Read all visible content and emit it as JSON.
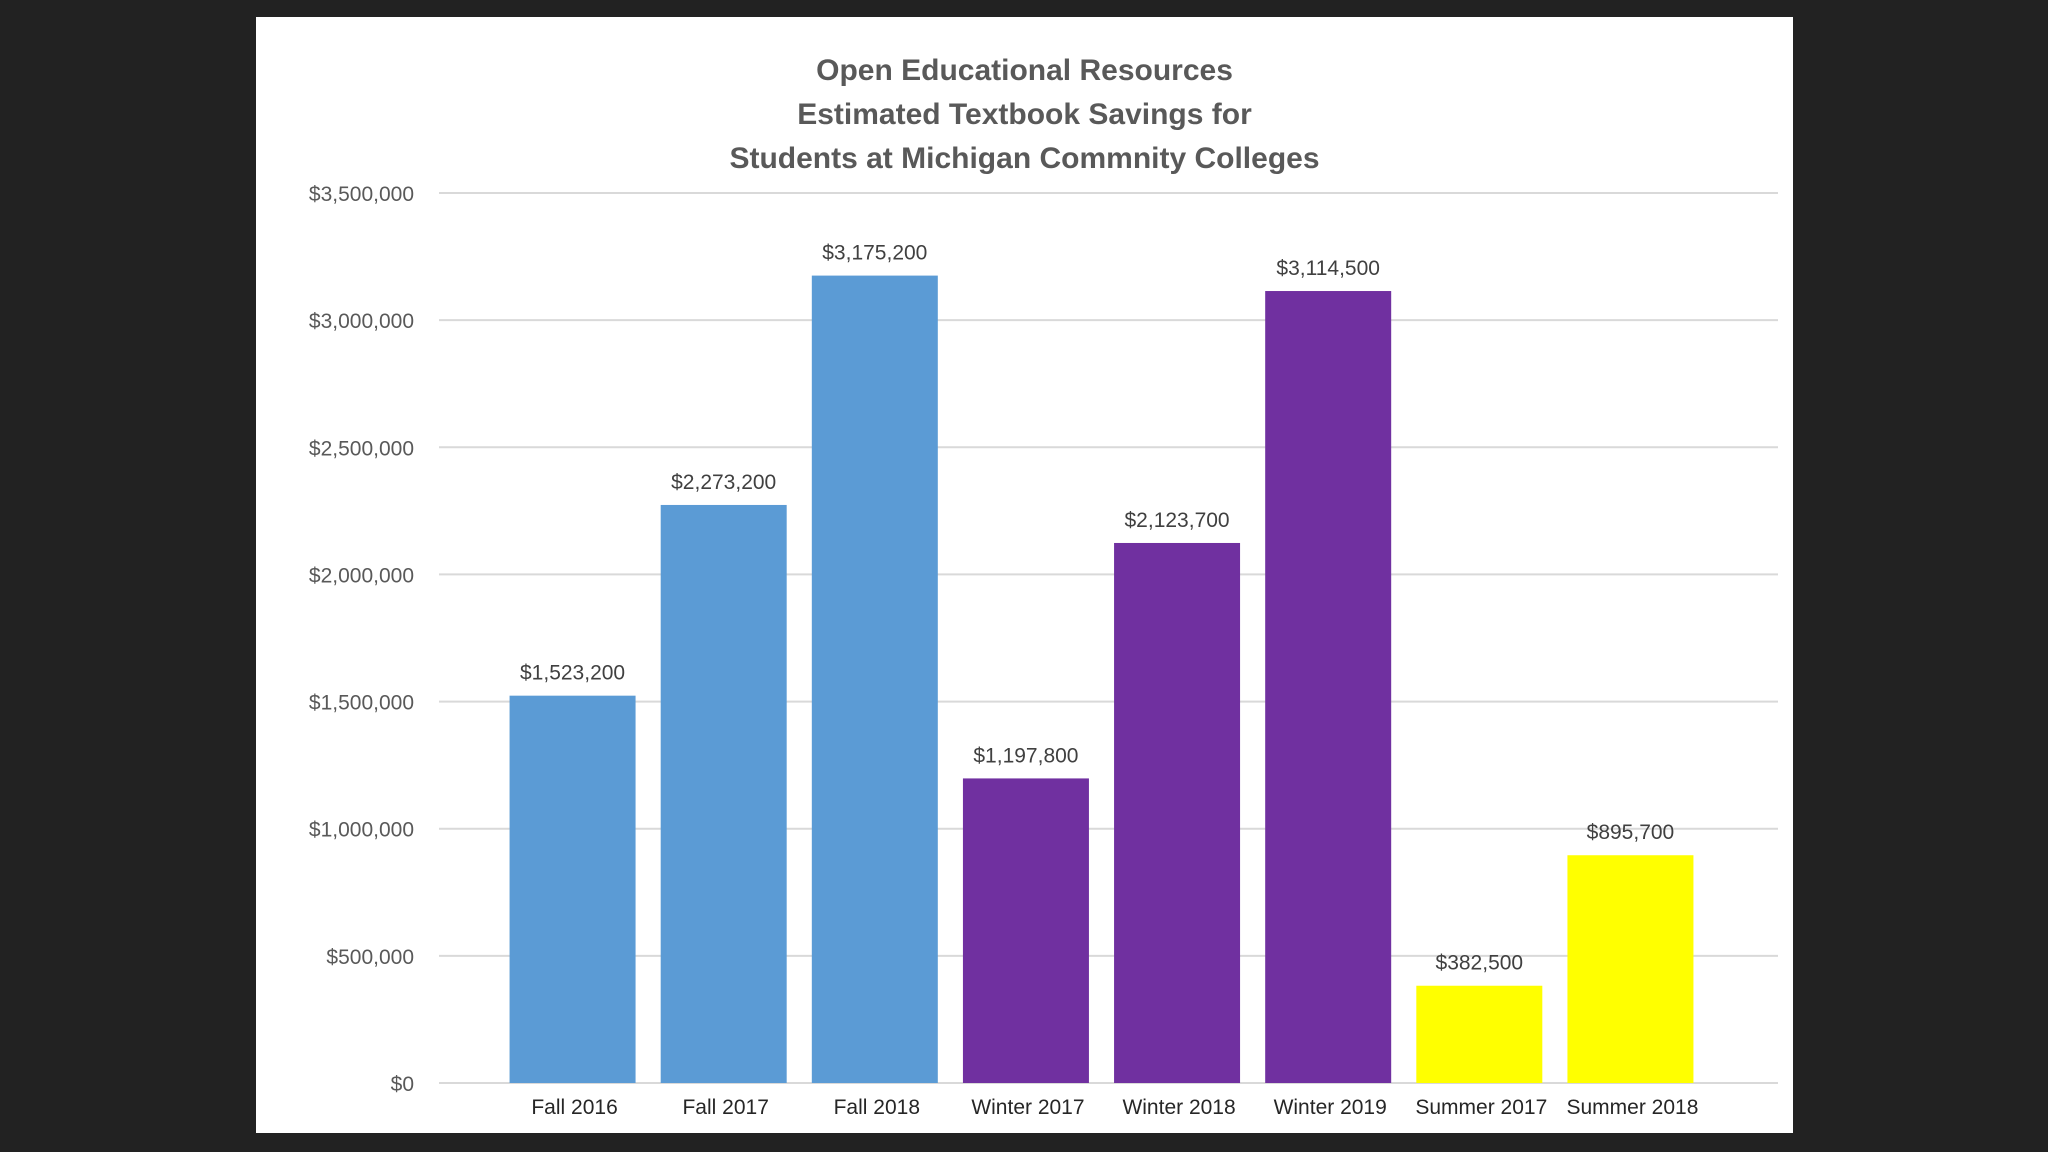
{
  "chart_data": {
    "type": "bar",
    "title_lines": [
      "Open Educational Resources",
      "Estimated Textbook Savings for",
      "Students at Michigan Commnity Colleges"
    ],
    "xlabel": "",
    "ylabel": "",
    "categories": [
      "Fall 2016",
      "Fall 2017",
      "Fall 2018",
      "Winter 2017",
      "Winter 2018",
      "Winter 2019",
      "Summer 2017",
      "Summer 2018"
    ],
    "values": [
      1523200,
      2273200,
      3175200,
      1197800,
      2123700,
      3114500,
      382500,
      895700
    ],
    "data_labels": [
      "$1,523,200",
      "$2,273,200",
      "$3,175,200",
      "$1,197,800",
      "$2,123,700",
      "$3,114,500",
      "$382,500",
      "$895,700"
    ],
    "bar_colors": [
      "#5b9bd5",
      "#5b9bd5",
      "#5b9bd5",
      "#7030a0",
      "#7030a0",
      "#7030a0",
      "#ffff00",
      "#ffff00"
    ],
    "ylim": [
      0,
      3500000
    ],
    "yticks": [
      0,
      500000,
      1000000,
      1500000,
      2000000,
      2500000,
      3000000,
      3500000
    ],
    "ytick_labels": [
      "$0",
      "$500,000",
      "$1,000,000",
      "$1,500,000",
      "$2,000,000",
      "$2,500,000",
      "$3,000,000",
      "$3,500,000"
    ],
    "grid": true,
    "gridline_color": "#d9d9d9",
    "legend": "none"
  }
}
